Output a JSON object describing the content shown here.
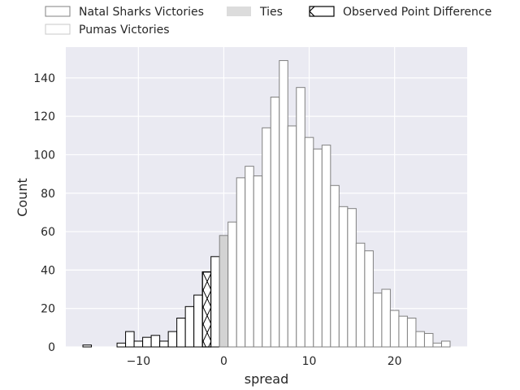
{
  "chart_data": {
    "type": "bar",
    "xlabel": "spread",
    "ylabel": "Count",
    "xlim": [
      -18.5,
      28.5
    ],
    "ylim": [
      0,
      156
    ],
    "xticks": [
      -10,
      0,
      10,
      20
    ],
    "xtick_labels": [
      "−10",
      "0",
      "10",
      "20"
    ],
    "yticks": [
      0,
      20,
      40,
      60,
      80,
      100,
      120,
      140
    ],
    "ytick_labels": [
      "0",
      "20",
      "40",
      "60",
      "80",
      "100",
      "120",
      "140"
    ],
    "grid": true,
    "legend_position": "top",
    "legend": [
      {
        "label": "Natal Sharks Victories",
        "style": "natal"
      },
      {
        "label": "Pumas Victories",
        "style": "pumas"
      },
      {
        "label": "Ties",
        "style": "ties"
      },
      {
        "label": "Observed Point Difference",
        "style": "observed"
      }
    ],
    "bins": [
      {
        "x": -16,
        "count": 1,
        "group": "natal"
      },
      {
        "x": -12,
        "count": 2,
        "group": "natal"
      },
      {
        "x": -11,
        "count": 8,
        "group": "natal"
      },
      {
        "x": -10,
        "count": 3,
        "group": "natal"
      },
      {
        "x": -9,
        "count": 5,
        "group": "natal"
      },
      {
        "x": -8,
        "count": 6,
        "group": "natal"
      },
      {
        "x": -7,
        "count": 3,
        "group": "natal"
      },
      {
        "x": -6,
        "count": 8,
        "group": "natal"
      },
      {
        "x": -5,
        "count": 15,
        "group": "natal"
      },
      {
        "x": -4,
        "count": 21,
        "group": "natal"
      },
      {
        "x": -3,
        "count": 27,
        "group": "natal"
      },
      {
        "x": -2,
        "count": 39,
        "group": "natal",
        "observed": true
      },
      {
        "x": -1,
        "count": 47,
        "group": "natal"
      },
      {
        "x": 0,
        "count": 58,
        "group": "ties"
      },
      {
        "x": 1,
        "count": 65,
        "group": "pumas"
      },
      {
        "x": 2,
        "count": 88,
        "group": "pumas"
      },
      {
        "x": 3,
        "count": 94,
        "group": "pumas"
      },
      {
        "x": 4,
        "count": 89,
        "group": "pumas"
      },
      {
        "x": 5,
        "count": 114,
        "group": "pumas"
      },
      {
        "x": 6,
        "count": 130,
        "group": "pumas"
      },
      {
        "x": 7,
        "count": 149,
        "group": "pumas"
      },
      {
        "x": 8,
        "count": 115,
        "group": "pumas"
      },
      {
        "x": 9,
        "count": 135,
        "group": "pumas"
      },
      {
        "x": 10,
        "count": 109,
        "group": "pumas"
      },
      {
        "x": 11,
        "count": 103,
        "group": "pumas"
      },
      {
        "x": 12,
        "count": 105,
        "group": "pumas"
      },
      {
        "x": 13,
        "count": 84,
        "group": "pumas"
      },
      {
        "x": 14,
        "count": 73,
        "group": "pumas"
      },
      {
        "x": 15,
        "count": 72,
        "group": "pumas"
      },
      {
        "x": 16,
        "count": 54,
        "group": "pumas"
      },
      {
        "x": 17,
        "count": 50,
        "group": "pumas"
      },
      {
        "x": 18,
        "count": 28,
        "group": "pumas"
      },
      {
        "x": 19,
        "count": 30,
        "group": "pumas"
      },
      {
        "x": 20,
        "count": 19,
        "group": "pumas"
      },
      {
        "x": 21,
        "count": 16,
        "group": "pumas"
      },
      {
        "x": 22,
        "count": 15,
        "group": "pumas"
      },
      {
        "x": 23,
        "count": 8,
        "group": "pumas"
      },
      {
        "x": 24,
        "count": 7,
        "group": "pumas"
      },
      {
        "x": 25,
        "count": 2,
        "group": "pumas"
      },
      {
        "x": 26,
        "count": 3,
        "group": "pumas"
      }
    ],
    "colors": {
      "plot_background": "#eaeaf2",
      "grid": "#ffffff",
      "natal_edge": "#000000",
      "pumas_edge": "#808080",
      "bar_fill": "#ffffff",
      "ties_fill": "#d3d3d3",
      "ties_edge": "#808080",
      "text": "#262626"
    }
  }
}
